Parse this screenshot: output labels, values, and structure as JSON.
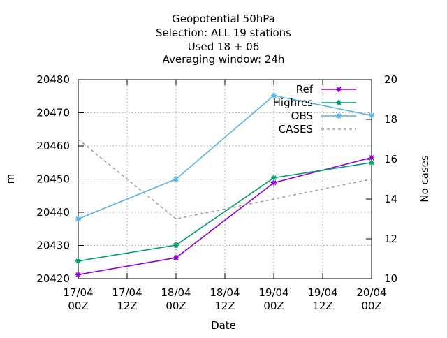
{
  "chart_data": {
    "type": "line",
    "title_lines": [
      "Geopotential 50hPa",
      "Selection: ALL     19 stations",
      "Used  18 + 06",
      "Averaging window: 24h"
    ],
    "xlabel": "Date",
    "ylabel": "m",
    "y2label": "No cases",
    "x_ticks": [
      {
        "x": 0,
        "line1": "17/04",
        "line2": "00Z"
      },
      {
        "x": 12,
        "line1": "17/04",
        "line2": "12Z"
      },
      {
        "x": 24,
        "line1": "18/04",
        "line2": "00Z"
      },
      {
        "x": 36,
        "line1": "18/04",
        "line2": "12Z"
      },
      {
        "x": 48,
        "line1": "19/04",
        "line2": "00Z"
      },
      {
        "x": 60,
        "line1": "19/04",
        "line2": "12Z"
      },
      {
        "x": 72,
        "line1": "20/04",
        "line2": "00Z"
      }
    ],
    "xlim": [
      0,
      72
    ],
    "ylim": [
      20420,
      20480
    ],
    "y_ticks": [
      20420,
      20430,
      20440,
      20450,
      20460,
      20470,
      20480
    ],
    "y2lim": [
      10,
      20
    ],
    "y2_ticks": [
      10,
      12,
      14,
      16,
      18,
      20
    ],
    "grid": true,
    "legend_position": "top-right",
    "series": [
      {
        "name": "Ref",
        "axis": "y",
        "color": "#9400d3",
        "dashed": false,
        "marker": true,
        "x": [
          0,
          24,
          48,
          72
        ],
        "values": [
          20421.2,
          20426.3,
          20448.9,
          20456.5
        ]
      },
      {
        "name": "Highres",
        "axis": "y",
        "color": "#009e73",
        "dashed": false,
        "marker": true,
        "x": [
          0,
          24,
          48,
          72
        ],
        "values": [
          20425.3,
          20430.1,
          20450.4,
          20455.0
        ]
      },
      {
        "name": "OBS",
        "axis": "y2",
        "color": "#56b4e9",
        "dashed": false,
        "marker": true,
        "x": [
          0,
          24,
          48,
          72
        ],
        "values": [
          13.0,
          15.0,
          19.2,
          18.2
        ]
      },
      {
        "name": "CASES",
        "axis": "y2",
        "color": "#a0a0a0",
        "dashed": true,
        "marker": false,
        "x": [
          0,
          24,
          48,
          72
        ],
        "values": [
          17.0,
          13.0,
          14.0,
          15.0
        ]
      }
    ]
  }
}
